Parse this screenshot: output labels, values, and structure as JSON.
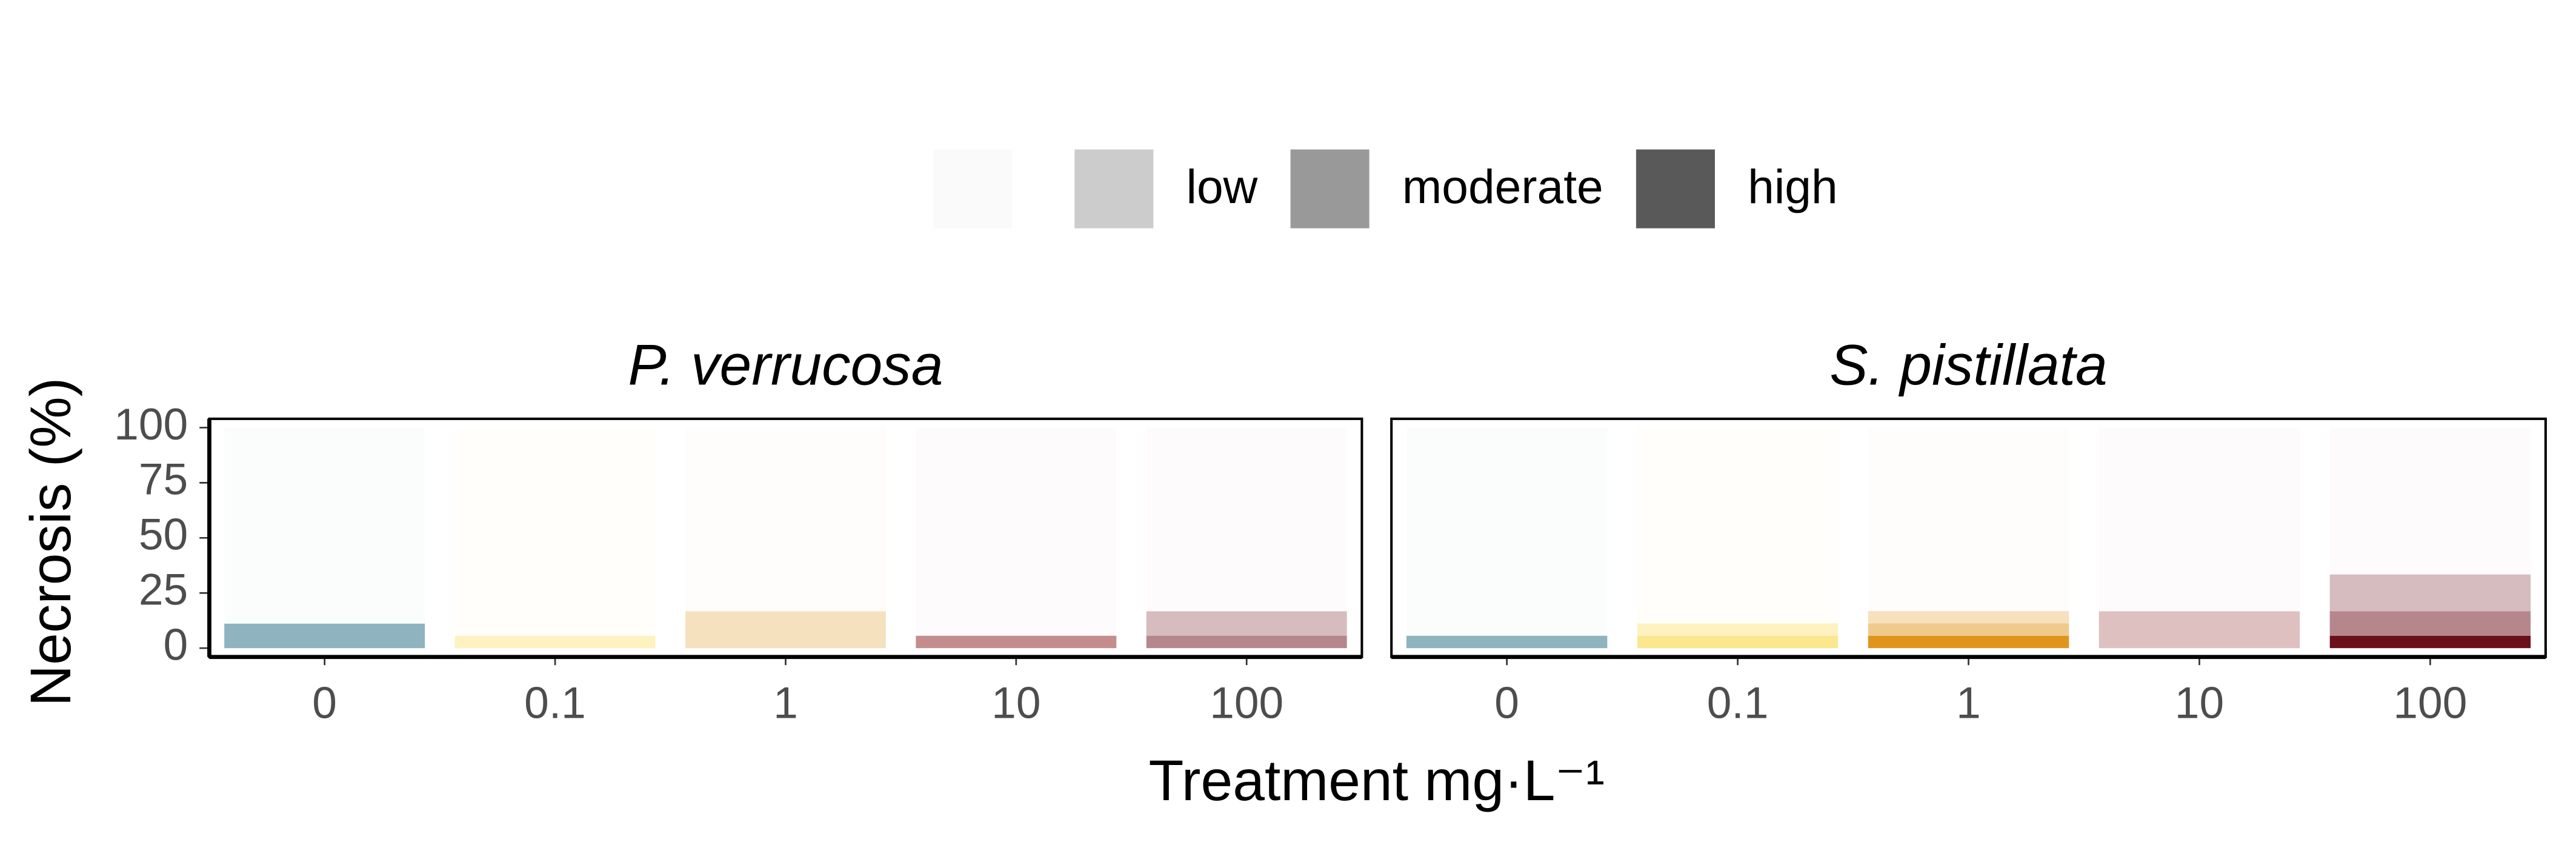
{
  "chart_data": [
    {
      "type": "bar",
      "stacked": true,
      "title": "P. verrucosa",
      "xlabel": "Treatment mg·L⁻¹",
      "ylabel": "Necrosis (%)",
      "categories": [
        "0",
        "0.1",
        "1",
        "10",
        "100"
      ],
      "category_colors": [
        "#1f6780",
        "#f7d21e",
        "#e0951a",
        "#8a1c1c",
        "#6b0f1a"
      ],
      "series": [
        {
          "name": "high",
          "color": "#595959",
          "opacity": 1,
          "values": [
            0,
            0,
            0,
            0,
            0
          ]
        },
        {
          "name": "moderate",
          "color": "#999999",
          "opacity": 0.5,
          "values": [
            11.1,
            0,
            0,
            5.6,
            5.6
          ]
        },
        {
          "name": "low",
          "color": "#cccccc",
          "opacity": 0.28,
          "values": [
            0,
            5.6,
            16.7,
            0,
            11.1
          ]
        },
        {
          "name": null,
          "color": "#fafafa",
          "opacity": 0.015,
          "values": [
            88.9,
            94.4,
            83.3,
            94.4,
            83.3
          ]
        }
      ],
      "ylim": [
        -4,
        104
      ],
      "yticks": [
        0,
        25,
        50,
        75,
        100
      ]
    },
    {
      "type": "bar",
      "stacked": true,
      "title": "S. pistillata",
      "categories": [
        "0",
        "0.1",
        "1",
        "10",
        "100"
      ],
      "category_colors": [
        "#1f6780",
        "#f7d21e",
        "#e0951a",
        "#8a1c1c",
        "#6b0f1a"
      ],
      "series": [
        {
          "name": "high",
          "color": "#595959",
          "opacity": 1,
          "values": [
            0,
            0,
            5.6,
            0,
            5.6
          ]
        },
        {
          "name": "moderate",
          "color": "#999999",
          "opacity": 0.5,
          "values": [
            5.6,
            5.6,
            5.6,
            0,
            11.1
          ]
        },
        {
          "name": "low",
          "color": "#cccccc",
          "opacity": 0.28,
          "values": [
            0,
            5.6,
            5.6,
            16.7,
            16.7
          ]
        },
        {
          "name": null,
          "color": "#fafafa",
          "opacity": 0.015,
          "values": [
            94.4,
            88.8,
            83.2,
            83.3,
            66.6
          ]
        }
      ],
      "ylim": [
        -4,
        104
      ]
    }
  ]
}
